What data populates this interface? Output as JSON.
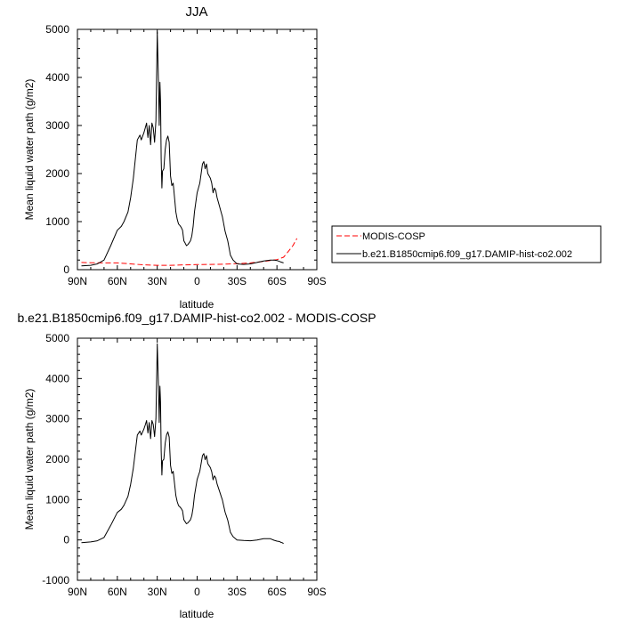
{
  "chart_data": [
    {
      "type": "line",
      "title": "JJA",
      "xlabel": "latitude",
      "ylabel": "Mean liquid water path (g/m2)",
      "xlim": [
        90,
        -90
      ],
      "ylim": [
        0,
        5000
      ],
      "x_ticks": [
        90,
        60,
        30,
        0,
        -30,
        -60,
        -90
      ],
      "x_tick_labels": [
        "90N",
        "60N",
        "30N",
        "0",
        "30S",
        "60S",
        "90S"
      ],
      "y_ticks": [
        0,
        1000,
        2000,
        3000,
        4000,
        5000
      ],
      "y_tick_labels": [
        "0",
        "1000",
        "2000",
        "3000",
        "4000",
        "5000"
      ],
      "legend": "outside-right",
      "series": [
        {
          "name": "MODIS-COSP",
          "color": "#ff0000",
          "dash": true,
          "x": [
            87,
            80,
            70,
            60,
            50,
            40,
            30,
            20,
            10,
            0,
            -10,
            -20,
            -30,
            -40,
            -50,
            -60,
            -65,
            -68,
            -72,
            -75
          ],
          "y": [
            150,
            145,
            140,
            140,
            120,
            100,
            90,
            90,
            100,
            105,
            110,
            115,
            125,
            140,
            170,
            210,
            260,
            360,
            500,
            650
          ]
        },
        {
          "name": "b.e21.B1850cmip6.f09_g17.DAMIP-hist-co2.002",
          "color": "#000000",
          "dash": false,
          "x": [
            87,
            80,
            75,
            70,
            65,
            60,
            57,
            55,
            52,
            50,
            48,
            45,
            43,
            42,
            40,
            39,
            38,
            37,
            36,
            35,
            34,
            33,
            32,
            31,
            30,
            29,
            28.5,
            28,
            27.5,
            27,
            26.5,
            26,
            25,
            24,
            23,
            22,
            21,
            20,
            19,
            18,
            17,
            16,
            15,
            14,
            13,
            12,
            11,
            10,
            9,
            8,
            7,
            6,
            5,
            4,
            3,
            2,
            0,
            -2,
            -4,
            -5,
            -6,
            -7,
            -8,
            -9,
            -10,
            -11,
            -12,
            -13,
            -14,
            -15,
            -16,
            -17,
            -18,
            -19,
            -20,
            -21,
            -22,
            -23,
            -24,
            -25,
            -27,
            -30,
            -35,
            -40,
            -45,
            -50,
            -55,
            -58,
            -60,
            -62,
            -63,
            -64,
            -65
          ],
          "y": [
            80,
            90,
            120,
            200,
            500,
            820,
            900,
            1000,
            1200,
            1500,
            1900,
            2700,
            2800,
            2700,
            2850,
            2950,
            3050,
            2750,
            3000,
            2600,
            3050,
            2950,
            2650,
            3100,
            4950,
            3800,
            3000,
            3900,
            3500,
            2300,
            1700,
            2050,
            2100,
            2500,
            2700,
            2780,
            2650,
            1950,
            1750,
            1800,
            1500,
            1200,
            1050,
            950,
            920,
            880,
            820,
            600,
            550,
            500,
            520,
            560,
            600,
            700,
            900,
            1200,
            1600,
            1800,
            2200,
            2250,
            2100,
            2200,
            2000,
            1950,
            1900,
            1800,
            1600,
            1700,
            1650,
            1500,
            1400,
            1300,
            1200,
            1100,
            950,
            800,
            700,
            600,
            450,
            300,
            200,
            120,
            110,
            120,
            150,
            180,
            200,
            200,
            190,
            170,
            160,
            150,
            140
          ]
        }
      ]
    },
    {
      "type": "line",
      "title": "b.e21.B1850cmip6.f09_g17.DAMIP-hist-co2.002 - MODIS-COSP",
      "xlabel": "latitude",
      "ylabel": "Mean liquid water path (g/m2)",
      "xlim": [
        90,
        -90
      ],
      "ylim": [
        -1000,
        5000
      ],
      "x_ticks": [
        90,
        60,
        30,
        0,
        -30,
        -60,
        -90
      ],
      "x_tick_labels": [
        "90N",
        "60N",
        "30N",
        "0",
        "30S",
        "60S",
        "90S"
      ],
      "y_ticks": [
        -1000,
        0,
        1000,
        2000,
        3000,
        4000,
        5000
      ],
      "y_tick_labels": [
        "-1000",
        "0",
        "1000",
        "2000",
        "3000",
        "4000",
        "5000"
      ],
      "series": [
        {
          "name": "",
          "color": "#000000",
          "dash": false,
          "x": [
            87,
            80,
            75,
            70,
            65,
            60,
            57,
            55,
            52,
            50,
            48,
            45,
            43,
            42,
            40,
            39,
            38,
            37,
            36,
            35,
            34,
            33,
            32,
            31,
            30,
            29,
            28.5,
            28,
            27.5,
            27,
            26.5,
            26,
            25,
            24,
            23,
            22,
            21,
            20,
            19,
            18,
            17,
            16,
            15,
            14,
            13,
            12,
            11,
            10,
            9,
            8,
            7,
            6,
            5,
            4,
            3,
            2,
            0,
            -2,
            -4,
            -5,
            -6,
            -7,
            -8,
            -9,
            -10,
            -11,
            -12,
            -13,
            -14,
            -15,
            -16,
            -17,
            -18,
            -19,
            -20,
            -21,
            -22,
            -23,
            -24,
            -25,
            -27,
            -30,
            -35,
            -40,
            -45,
            -50,
            -55,
            -58,
            -60,
            -62,
            -63,
            -64,
            -65
          ],
          "y": [
            -70,
            -50,
            -20,
            60,
            360,
            680,
            760,
            860,
            1080,
            1380,
            1780,
            2600,
            2700,
            2600,
            2750,
            2850,
            2960,
            2650,
            2910,
            2510,
            2960,
            2860,
            2560,
            3010,
            4860,
            3710,
            2910,
            3810,
            3410,
            2210,
            1610,
            1960,
            2000,
            2400,
            2600,
            2680,
            2550,
            1850,
            1650,
            1700,
            1400,
            1100,
            950,
            850,
            820,
            780,
            720,
            500,
            450,
            400,
            420,
            460,
            500,
            600,
            800,
            1100,
            1500,
            1700,
            2090,
            2140,
            1990,
            2090,
            1890,
            1840,
            1790,
            1690,
            1490,
            1590,
            1540,
            1390,
            1290,
            1190,
            1090,
            990,
            840,
            690,
            590,
            490,
            340,
            190,
            80,
            0,
            -15,
            -20,
            0,
            30,
            30,
            -10,
            -30,
            -40,
            -60,
            -70,
            -90
          ]
        }
      ]
    }
  ]
}
